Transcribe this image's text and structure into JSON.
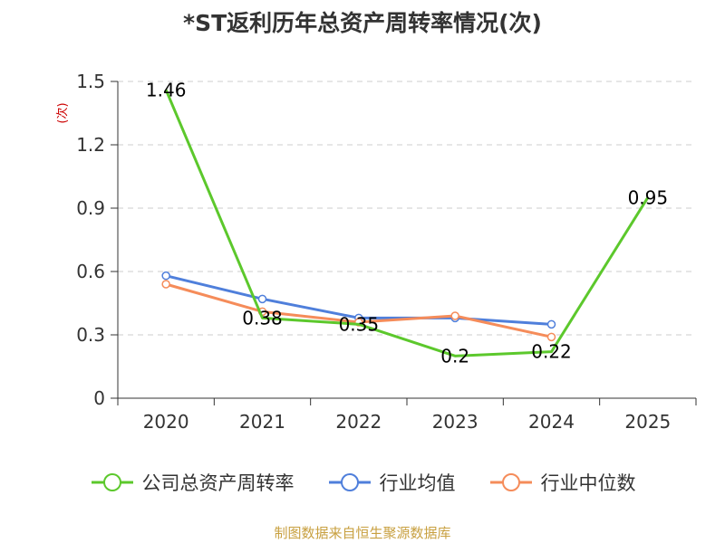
{
  "chart_data": {
    "type": "line",
    "title": "*ST返利历年总资产周转率情况(次)",
    "ylabel": "(次)",
    "xlabel": "",
    "categories": [
      "2020",
      "2021",
      "2022",
      "2023",
      "2024",
      "2025"
    ],
    "ylim": [
      0,
      1.5
    ],
    "yticks": [
      "0",
      "0.3",
      "0.6",
      "0.9",
      "1.2",
      "1.5"
    ],
    "grid": true,
    "legend_position": "bottom",
    "series": [
      {
        "name": "公司总资产周转率",
        "color": "#5cc82c",
        "values": [
          1.46,
          0.38,
          0.35,
          0.2,
          0.22,
          0.95
        ],
        "labels": [
          "1.46",
          "0.38",
          "0.35",
          "0.2",
          "0.22",
          "0.95"
        ]
      },
      {
        "name": "行业均值",
        "color": "#4f7fdb",
        "values": [
          0.58,
          0.47,
          0.38,
          0.38,
          0.35,
          null
        ]
      },
      {
        "name": "行业中位数",
        "color": "#f58c5a",
        "values": [
          0.54,
          0.41,
          0.36,
          0.39,
          0.29,
          null
        ]
      }
    ]
  },
  "footer": {
    "source": "制图数据来自恒生聚源数据库"
  }
}
